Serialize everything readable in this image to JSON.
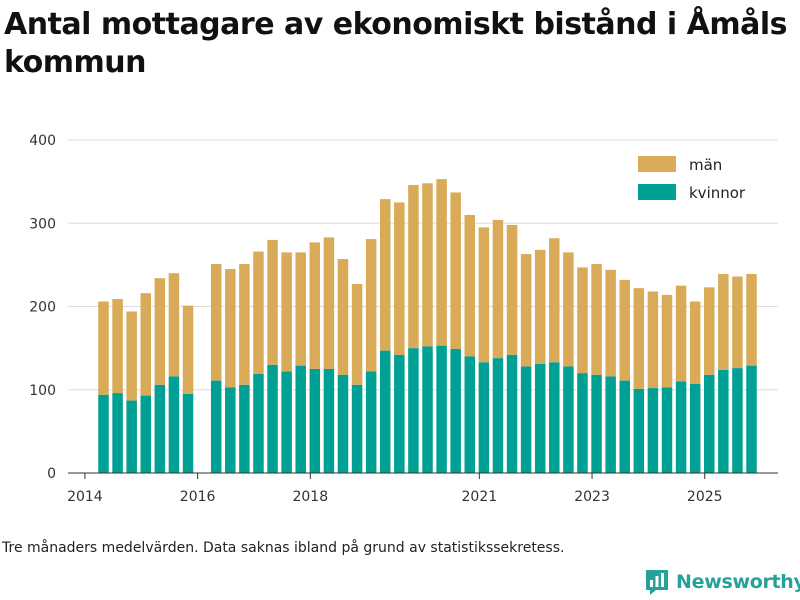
{
  "title": "Antal mottagare av ekonomiskt bistånd i Åmåls kommun",
  "caption": "Tre månaders medelvärden. Data saknas ibland på grund av statistikssekretess.",
  "brand": {
    "name": "Newsworthy",
    "color": "#27a29a"
  },
  "colors": {
    "men": "#d9aa57",
    "women": "#00a095",
    "grid": "#dddddd",
    "axis": "#333333"
  },
  "chart_data": {
    "type": "bar",
    "stacked": true,
    "title": "Antal mottagare av ekonomiskt bistånd i Åmåls kommun",
    "xlabel": "",
    "ylabel": "",
    "ylim": [
      0,
      400
    ],
    "yticks": [
      0,
      100,
      200,
      300,
      400
    ],
    "xlim": [
      2013.7,
      2026.3
    ],
    "xticks": [
      {
        "label": "2014",
        "value": 2014.0
      },
      {
        "label": "2016",
        "value": 2016.0
      },
      {
        "label": "2018",
        "value": 2018.0
      },
      {
        "label": "2021",
        "value": 2021.0
      },
      {
        "label": "2023",
        "value": 2023.0
      },
      {
        "label": "2025",
        "value": 2025.0
      }
    ],
    "legend": {
      "position": "top-right",
      "entries": [
        "män",
        "kvinnor"
      ]
    },
    "x": [
      2014.33,
      2014.58,
      2014.83,
      2015.08,
      2015.33,
      2015.58,
      2015.83,
      2016.33,
      2016.58,
      2016.83,
      2017.08,
      2017.33,
      2017.58,
      2017.83,
      2018.08,
      2018.33,
      2018.58,
      2018.83,
      2019.08,
      2019.33,
      2019.58,
      2019.83,
      2020.08,
      2020.33,
      2020.58,
      2020.83,
      2021.08,
      2021.33,
      2021.58,
      2021.83,
      2022.08,
      2022.33,
      2022.58,
      2022.83,
      2023.08,
      2023.33,
      2023.58,
      2023.83,
      2024.08,
      2024.33,
      2024.58,
      2024.83,
      2025.08,
      2025.33,
      2025.58,
      2025.83
    ],
    "series": [
      {
        "name": "kvinnor",
        "color": "#00a095",
        "values": [
          94,
          96,
          87,
          93,
          106,
          116,
          95,
          111,
          103,
          106,
          119,
          130,
          122,
          129,
          125,
          125,
          118,
          106,
          122,
          147,
          142,
          150,
          152,
          153,
          149,
          140,
          133,
          138,
          142,
          128,
          131,
          133,
          128,
          120,
          118,
          116,
          111,
          101,
          102,
          103,
          110,
          107,
          118,
          124,
          126,
          129
        ]
      },
      {
        "name": "män",
        "color": "#d9aa57",
        "values": [
          112,
          113,
          107,
          123,
          128,
          124,
          106,
          140,
          142,
          145,
          147,
          150,
          143,
          136,
          152,
          158,
          139,
          121,
          159,
          182,
          183,
          196,
          196,
          200,
          188,
          170,
          162,
          166,
          156,
          135,
          137,
          149,
          137,
          127,
          133,
          128,
          121,
          121,
          116,
          111,
          115,
          99,
          105,
          115,
          110,
          110
        ]
      }
    ]
  }
}
